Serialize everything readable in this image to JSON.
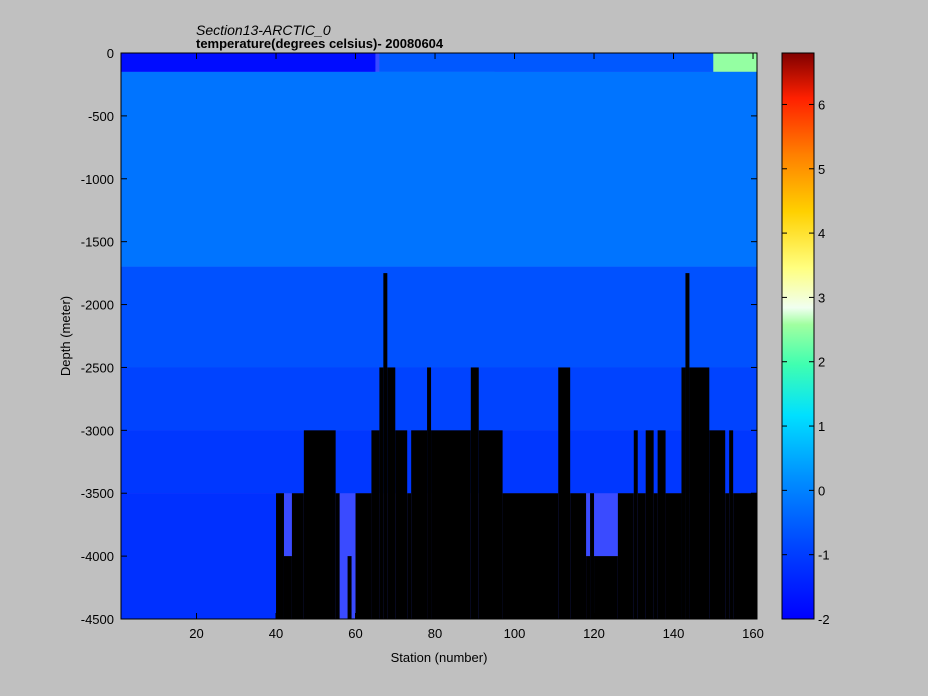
{
  "chart_data": {
    "type": "heatmap",
    "title": "Section13-ARCTIC_0",
    "subtitle": "temperature(degrees  celsius)- 20080604",
    "xlabel": "Station (number)",
    "ylabel": "Depth (meter)",
    "xlim": [
      1,
      161
    ],
    "ylim": [
      -4500,
      0
    ],
    "xticks": [
      20,
      40,
      60,
      80,
      100,
      120,
      140,
      160
    ],
    "yticks": [
      0,
      -500,
      -1000,
      -1500,
      -2000,
      -2500,
      -3000,
      -3500,
      -4000,
      -4500
    ],
    "colorbar": {
      "range": [
        -2,
        6.8
      ],
      "ticks": [
        -2,
        -1,
        0,
        1,
        2,
        3,
        4,
        5,
        6
      ]
    },
    "grid": false,
    "no_data_color": "#000000",
    "approx_temperature_field": [
      {
        "depth_band": [
          0,
          -150
        ],
        "stations": [
          1,
          65
        ],
        "value": -1.8
      },
      {
        "depth_band": [
          0,
          -150
        ],
        "stations": [
          66,
          150
        ],
        "value": -0.6
      },
      {
        "depth_band": [
          0,
          -150
        ],
        "stations": [
          150,
          161
        ],
        "value": 2.5
      },
      {
        "depth_band": [
          -150,
          -400
        ],
        "stations": [
          65,
          95
        ],
        "value": 0.3
      },
      {
        "depth_band": [
          -150,
          -1700
        ],
        "stations": [
          1,
          161
        ],
        "value": -0.2
      },
      {
        "depth_band": [
          -1700,
          -2500
        ],
        "stations": [
          1,
          161
        ],
        "value": -0.7
      },
      {
        "depth_band": [
          -2500,
          -3000
        ],
        "stations": [
          1,
          161
        ],
        "value": -0.9
      },
      {
        "depth_band": [
          -3000,
          -3500
        ],
        "stations": [
          1,
          161
        ],
        "value": -1.1
      },
      {
        "depth_band": [
          -3500,
          -4500
        ],
        "stations": [
          1,
          40
        ],
        "value": -1.2
      }
    ],
    "bathymetry_bottom_depth": [
      {
        "stations": [
          40,
          42
        ],
        "bottom": -3500
      },
      {
        "stations": [
          42,
          44
        ],
        "bottom": -4000
      },
      {
        "stations": [
          44,
          47
        ],
        "bottom": -3500
      },
      {
        "stations": [
          47,
          55
        ],
        "bottom": -3000
      },
      {
        "stations": [
          55,
          56
        ],
        "bottom": -3500
      },
      {
        "stations": [
          56,
          58
        ],
        "bottom": -4500
      },
      {
        "stations": [
          58,
          59
        ],
        "bottom": -4000
      },
      {
        "stations": [
          59,
          60
        ],
        "bottom": -4500
      },
      {
        "stations": [
          60,
          64
        ],
        "bottom": -3500
      },
      {
        "stations": [
          64,
          66
        ],
        "bottom": -3000
      },
      {
        "stations": [
          66,
          67
        ],
        "bottom": -2500
      },
      {
        "stations": [
          67,
          68
        ],
        "bottom": -1750
      },
      {
        "stations": [
          68,
          70
        ],
        "bottom": -2500
      },
      {
        "stations": [
          70,
          73
        ],
        "bottom": -3000
      },
      {
        "stations": [
          73,
          74
        ],
        "bottom": -3500
      },
      {
        "stations": [
          74,
          78
        ],
        "bottom": -3000
      },
      {
        "stations": [
          78,
          79
        ],
        "bottom": -2500
      },
      {
        "stations": [
          79,
          89
        ],
        "bottom": -3000
      },
      {
        "stations": [
          89,
          91
        ],
        "bottom": -2500
      },
      {
        "stations": [
          91,
          97
        ],
        "bottom": -3000
      },
      {
        "stations": [
          97,
          111
        ],
        "bottom": -3500
      },
      {
        "stations": [
          111,
          114
        ],
        "bottom": -2500
      },
      {
        "stations": [
          114,
          118
        ],
        "bottom": -3500
      },
      {
        "stations": [
          118,
          119
        ],
        "bottom": -4000
      },
      {
        "stations": [
          119,
          120
        ],
        "bottom": -3500
      },
      {
        "stations": [
          120,
          126
        ],
        "bottom": -4000
      },
      {
        "stations": [
          126,
          130
        ],
        "bottom": -3500
      },
      {
        "stations": [
          130,
          131
        ],
        "bottom": -3000
      },
      {
        "stations": [
          131,
          133
        ],
        "bottom": -3500
      },
      {
        "stations": [
          133,
          135
        ],
        "bottom": -3000
      },
      {
        "stations": [
          135,
          136
        ],
        "bottom": -3500
      },
      {
        "stations": [
          136,
          138
        ],
        "bottom": -3000
      },
      {
        "stations": [
          138,
          142
        ],
        "bottom": -3500
      },
      {
        "stations": [
          142,
          143
        ],
        "bottom": -2500
      },
      {
        "stations": [
          143,
          144
        ],
        "bottom": -1750
      },
      {
        "stations": [
          144,
          149
        ],
        "bottom": -2500
      },
      {
        "stations": [
          149,
          153
        ],
        "bottom": -3000
      },
      {
        "stations": [
          153,
          154
        ],
        "bottom": -3500
      },
      {
        "stations": [
          154,
          155
        ],
        "bottom": -3000
      },
      {
        "stations": [
          155,
          161
        ],
        "bottom": -3500
      }
    ]
  }
}
